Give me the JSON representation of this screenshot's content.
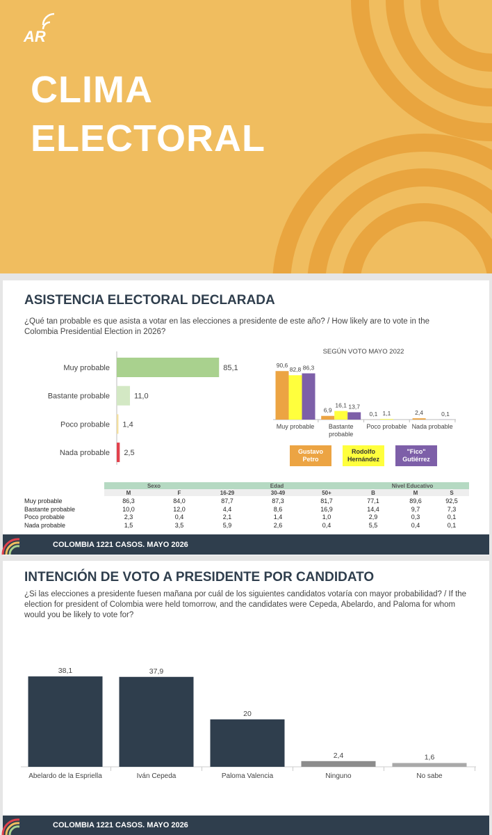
{
  "header": {
    "logo": "AR",
    "title_lines": [
      "CLIMA",
      "ELECTORAL"
    ]
  },
  "attendance": {
    "title": "ASISTENCIA ELECTORAL DECLARADA",
    "question": "¿Qué tan probable es que asista a votar en las elecciones a presidente de este año? /  How likely are to vote in the Colombia Presidential Election in 2026?",
    "footer": "COLOMBIA 1221 CASOS. MAYO 2026"
  },
  "chart_data": [
    {
      "type": "hbar",
      "categories": [
        "Muy probable",
        "Bastante probable",
        "Poco probable",
        "Nada probable"
      ],
      "values": [
        85.1,
        11.0,
        1.4,
        2.5
      ],
      "value_labels": [
        "85,1",
        "11,0",
        "1,4",
        "2,5"
      ],
      "colors": [
        "#a9d18e",
        "#d3e8c4",
        "#f3dfa0",
        "#e2424d"
      ]
    },
    {
      "type": "grouped_bar",
      "title": "SEGÚN VOTO MAYO 2022",
      "categories": [
        "Muy probable",
        "Bastante probable",
        "Poco probable",
        "Nada probable"
      ],
      "series": [
        {
          "name": "Gustavo Petro",
          "color": "#eca443",
          "values": [
            90.6,
            6.9,
            0.1,
            2.4
          ],
          "value_labels": [
            "90,6",
            "6,9",
            "0,1",
            "2,4"
          ]
        },
        {
          "name": "Rodolfo Hernández",
          "color": "#ffff3d",
          "values": [
            82.8,
            16.1,
            1.1,
            null
          ],
          "value_labels": [
            "82,8",
            "16,1",
            "1,1",
            null
          ]
        },
        {
          "name": "\"Fico\" Gutiérrez",
          "color": "#7d5fa8",
          "values": [
            86.3,
            13.7,
            null,
            0.1
          ],
          "value_labels": [
            "86,3",
            "13,7",
            null,
            "0,1"
          ]
        }
      ]
    },
    {
      "type": "bar",
      "categories": [
        "Abelardo de la Espriella",
        "Iván Cepeda",
        "Paloma Valencia",
        "Ninguno",
        "No sabe"
      ],
      "values": [
        38.1,
        37.9,
        20,
        2.4,
        1.6
      ],
      "value_labels": [
        "38,1",
        "37,9",
        "20",
        "2,4",
        "1,6"
      ],
      "colors": [
        "#2f3e4d",
        "#2f3e4d",
        "#2f3e4d",
        "#8c8c8c",
        "#a9a9a9"
      ]
    }
  ],
  "table": {
    "groups": [
      {
        "label": "Sexo",
        "columns": [
          "M",
          "F"
        ]
      },
      {
        "label": "Edad",
        "columns": [
          "16-29",
          "30-49",
          "50+"
        ]
      },
      {
        "label": "Nivel Educativo",
        "columns": [
          "B",
          "M",
          "S"
        ]
      }
    ],
    "rows": [
      {
        "label": "Muy probable",
        "cells": [
          "86,3",
          "84,0",
          "87,7",
          "87,3",
          "81,7",
          "77,1",
          "89,6",
          "92,5"
        ]
      },
      {
        "label": "Bastante probable",
        "cells": [
          "10,0",
          "12,0",
          "4,4",
          "8,6",
          "16,9",
          "14,4",
          "9,7",
          "7,3"
        ]
      },
      {
        "label": "Poco probable",
        "cells": [
          "2,3",
          "0,4",
          "2,1",
          "1,4",
          "1,0",
          "2,9",
          "0,3",
          "0,1"
        ]
      },
      {
        "label": "Nada probable",
        "cells": [
          "1,5",
          "3,5",
          "5,9",
          "2,6",
          "0,4",
          "5,5",
          "0,4",
          "0,1"
        ]
      }
    ]
  },
  "vote_intention": {
    "title": "INTENCIÓN DE VOTO A PRESIDENTE POR CANDIDATO",
    "question": "¿Si las elecciones a presidente fuesen mañana por cuál de los siguientes candidatos votaría con mayor probabilidad? /  If the election for president of Colombia were held tomorrow, and the candidates were Cepeda, Abelardo, and Paloma for whom would you be likely to vote for?",
    "footer": "COLOMBIA 1221 CASOS. MAYO 2026"
  }
}
